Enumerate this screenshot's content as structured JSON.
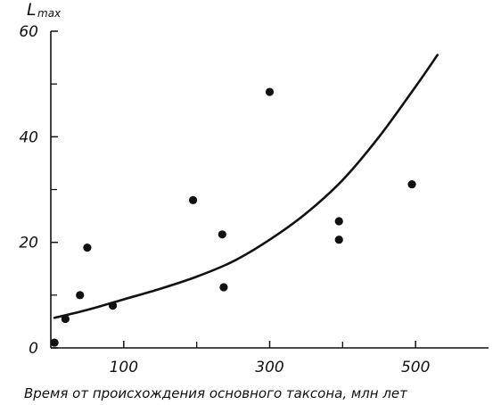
{
  "chart_data": {
    "type": "scatter",
    "ylabel": "L",
    "ylabel_sub": "max",
    "xlabel": "Время от происхождения основного таксона, млн лет",
    "xlim": [
      0,
      600
    ],
    "ylim": [
      0,
      60
    ],
    "x_ticks": [
      {
        "value": 100,
        "label": "100"
      },
      {
        "value": 300,
        "label": "300"
      },
      {
        "value": 500,
        "label": "500"
      }
    ],
    "x_minor_ticks": [
      200,
      400
    ],
    "y_ticks": [
      {
        "value": 0,
        "label": "0"
      },
      {
        "value": 20,
        "label": "20"
      },
      {
        "value": 40,
        "label": "40"
      },
      {
        "value": 60,
        "label": "60"
      }
    ],
    "y_minor_ticks": [
      10,
      30,
      50
    ],
    "points": [
      {
        "x": 5,
        "y": 1
      },
      {
        "x": 20,
        "y": 5.5
      },
      {
        "x": 40,
        "y": 10
      },
      {
        "x": 50,
        "y": 19
      },
      {
        "x": 85,
        "y": 8
      },
      {
        "x": 195,
        "y": 28
      },
      {
        "x": 235,
        "y": 21.5
      },
      {
        "x": 237,
        "y": 11.5
      },
      {
        "x": 300,
        "y": 48.5
      },
      {
        "x": 395,
        "y": 24
      },
      {
        "x": 395,
        "y": 20.5
      },
      {
        "x": 495,
        "y": 31
      }
    ],
    "trend_line": [
      [
        5,
        5.7
      ],
      [
        50,
        7.2
      ],
      [
        100,
        9.2
      ],
      [
        150,
        11.2
      ],
      [
        200,
        13.5
      ],
      [
        250,
        16.4
      ],
      [
        300,
        20.5
      ],
      [
        350,
        25.5
      ],
      [
        400,
        31.8
      ],
      [
        450,
        40
      ],
      [
        500,
        49.5
      ],
      [
        530,
        55.5
      ]
    ],
    "grid": false,
    "legend": "none"
  }
}
